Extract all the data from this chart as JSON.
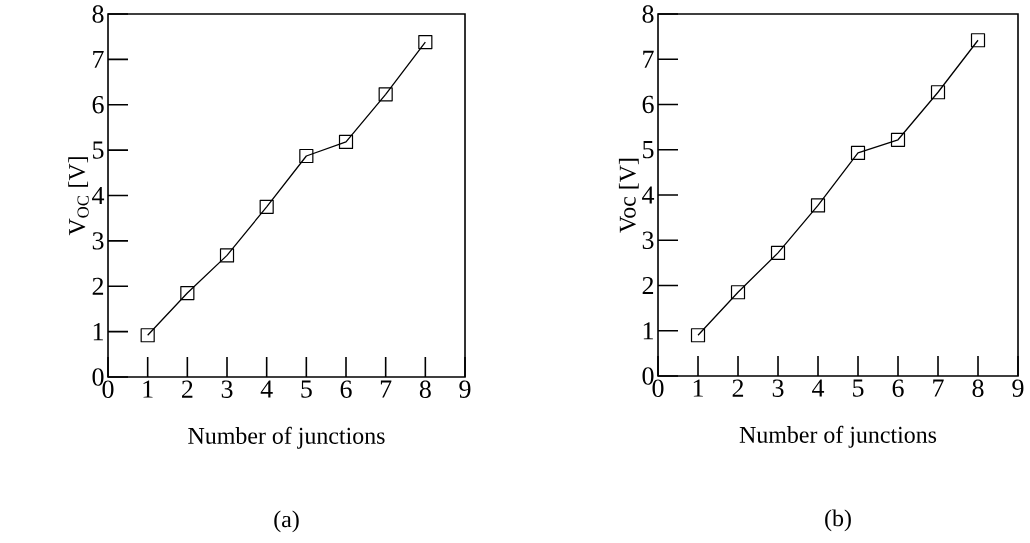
{
  "chart_data": [
    {
      "type": "line",
      "xlabel": "Number of junctions",
      "ylabel": "V$_{OC}$ [V]",
      "x": [
        1,
        2,
        3,
        4,
        5,
        6,
        7,
        8
      ],
      "values": [
        0.92,
        1.85,
        2.68,
        3.75,
        4.87,
        5.18,
        6.23,
        7.38
      ],
      "color": "#000000",
      "marker": "square",
      "line_style": "solid",
      "xlim": [
        0,
        9
      ],
      "ylim": [
        0,
        8
      ],
      "xticks": [
        0,
        1,
        2,
        3,
        4,
        5,
        6,
        7,
        8,
        9
      ],
      "yticks": [
        0,
        1,
        2,
        3,
        4,
        5,
        6,
        7,
        8
      ],
      "annotations": [
        "(a)"
      ]
    },
    {
      "type": "line",
      "xlabel": "Number of junctions",
      "ylabel": "Voc [V]",
      "x": [
        1,
        2,
        3,
        4,
        5,
        6,
        7,
        8
      ],
      "values": [
        0.9,
        1.85,
        2.72,
        3.77,
        4.93,
        5.22,
        6.27,
        7.42
      ],
      "color": "#000000",
      "marker": "square",
      "line_style": "solid",
      "xlim": [
        0,
        9
      ],
      "ylim": [
        0,
        8
      ],
      "xticks": [
        0,
        1,
        2,
        3,
        4,
        5,
        6,
        7,
        8,
        9
      ],
      "yticks": [
        0,
        1,
        2,
        3,
        4,
        5,
        6,
        7,
        8
      ],
      "annotations": [
        "(b)"
      ]
    }
  ]
}
